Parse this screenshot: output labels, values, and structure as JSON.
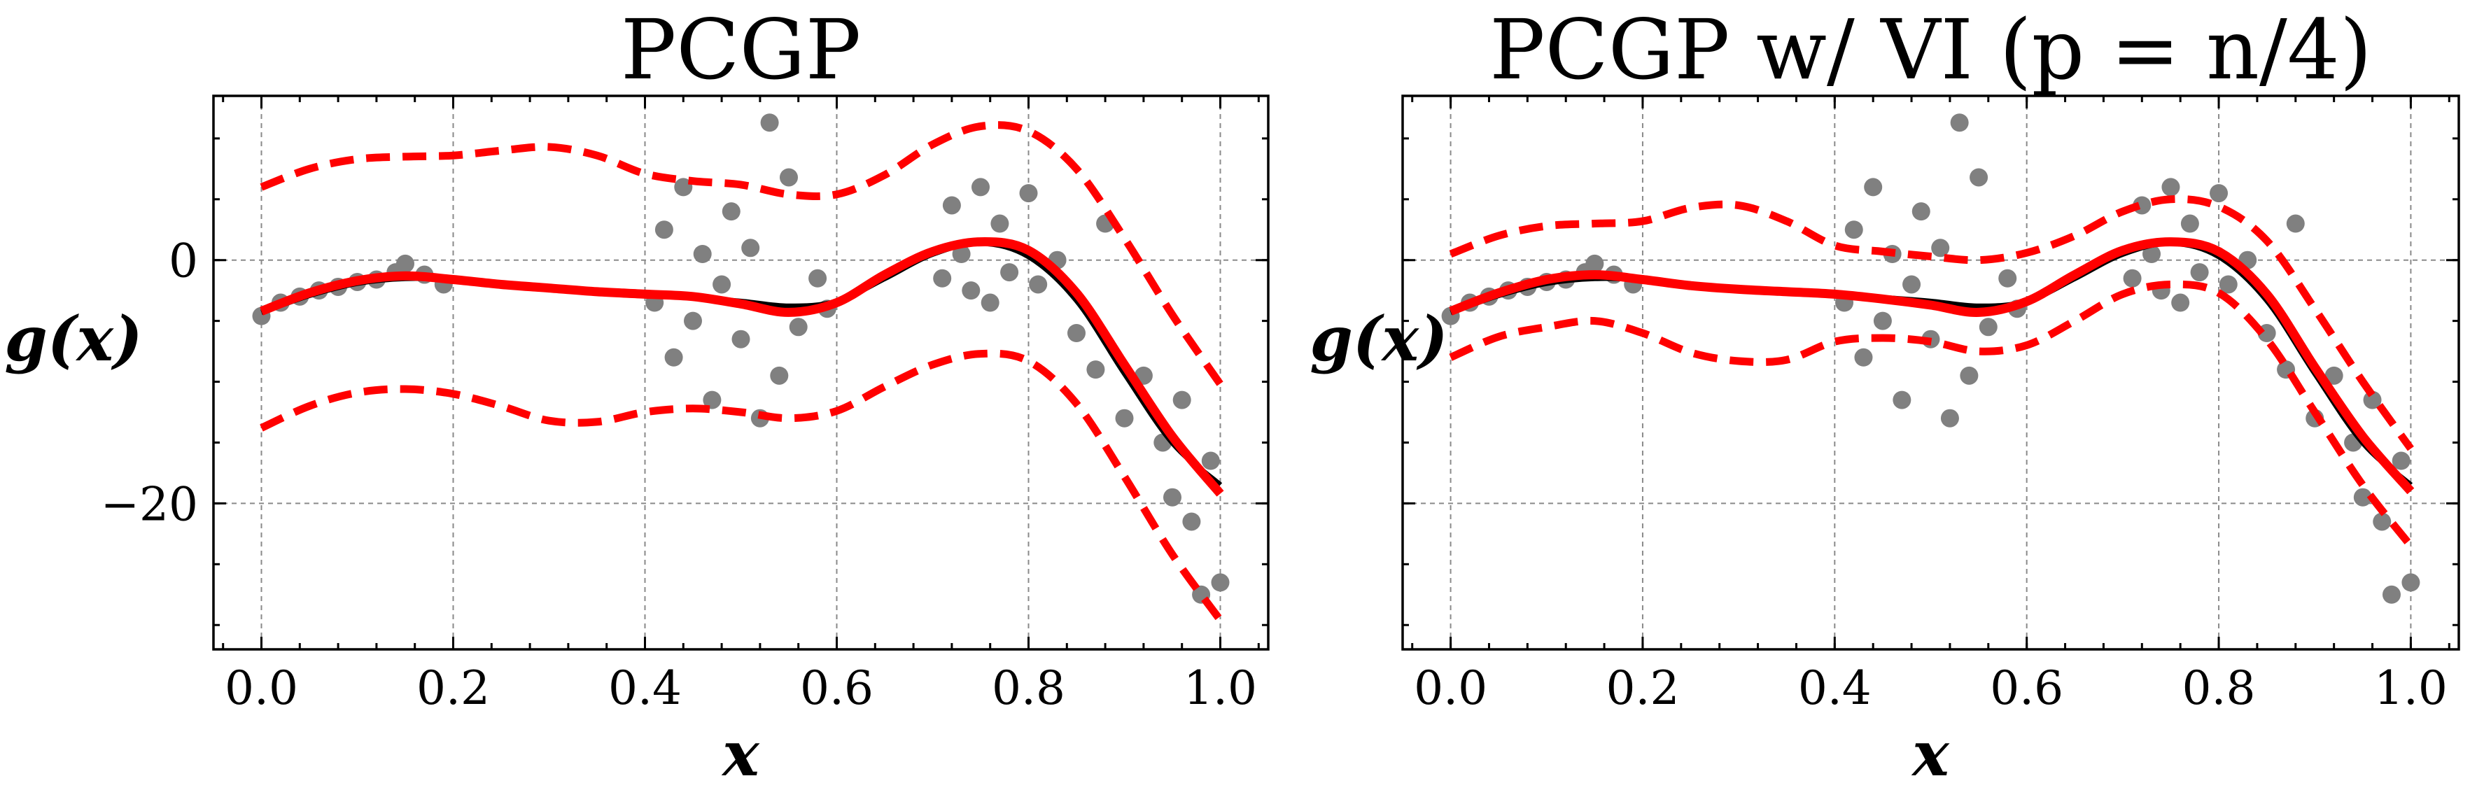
{
  "colors": {
    "points": "#808080",
    "true_function": "#000000",
    "mean": "#ff0000",
    "band": "#ff0000"
  },
  "chart_data": [
    {
      "type": "scatter",
      "title": "PCGP",
      "xlabel": "x",
      "ylabel": "g(x)",
      "xlim": [
        -0.05,
        1.05
      ],
      "ylim": [
        -32,
        13.5
      ],
      "xticks": [
        0.0,
        0.2,
        0.4,
        0.6,
        0.8,
        1.0
      ],
      "xtick_labels": [
        "0.0",
        "0.2",
        "0.4",
        "0.6",
        "0.8",
        "1.0"
      ],
      "yticks": [
        0,
        -20
      ],
      "ytick_labels": [
        "0",
        "−20"
      ],
      "grid": true,
      "x": [
        0.0,
        0.05,
        0.1,
        0.15,
        0.2,
        0.25,
        0.3,
        0.35,
        0.4,
        0.45,
        0.5,
        0.55,
        0.6,
        0.65,
        0.7,
        0.75,
        0.8,
        0.85,
        0.9,
        0.95,
        1.0
      ],
      "series": [
        {
          "role": "true-function",
          "y": [
            -4.3,
            -2.9,
            -1.9,
            -1.5,
            -1.6,
            -2.0,
            -2.4,
            -2.7,
            -2.9,
            -3.1,
            -3.4,
            -3.8,
            -3.4,
            -1.5,
            0.5,
            1.4,
            0.3,
            -3.3,
            -9.3,
            -15.0,
            -18.5
          ]
        },
        {
          "role": "mean",
          "y": [
            -4.2,
            -2.7,
            -1.7,
            -1.3,
            -1.6,
            -2.0,
            -2.3,
            -2.6,
            -2.8,
            -3.0,
            -3.6,
            -4.3,
            -3.5,
            -1.2,
            0.7,
            1.5,
            0.8,
            -2.7,
            -8.6,
            -14.5,
            -19.2
          ]
        },
        {
          "role": "upper-band",
          "y": [
            6.0,
            7.5,
            8.3,
            8.5,
            8.6,
            9.0,
            9.3,
            8.6,
            7.1,
            6.5,
            6.2,
            5.4,
            5.4,
            7.0,
            9.5,
            11.0,
            10.6,
            7.5,
            1.8,
            -4.5,
            -10.2
          ]
        },
        {
          "role": "lower-band",
          "y": [
            -13.8,
            -12.0,
            -10.9,
            -10.6,
            -11.0,
            -12.0,
            -13.2,
            -13.3,
            -12.5,
            -12.2,
            -12.5,
            -13.0,
            -12.4,
            -10.4,
            -8.6,
            -7.7,
            -8.3,
            -11.8,
            -17.8,
            -24.2,
            -29.6
          ]
        }
      ],
      "scatter_points": [
        {
          "x": 0.0,
          "y": -4.6
        },
        {
          "x": 0.02,
          "y": -3.5
        },
        {
          "x": 0.04,
          "y": -3.0
        },
        {
          "x": 0.06,
          "y": -2.5
        },
        {
          "x": 0.08,
          "y": -2.2
        },
        {
          "x": 0.1,
          "y": -1.8
        },
        {
          "x": 0.12,
          "y": -1.6
        },
        {
          "x": 0.14,
          "y": -1.0
        },
        {
          "x": 0.15,
          "y": -0.3
        },
        {
          "x": 0.17,
          "y": -1.2
        },
        {
          "x": 0.19,
          "y": -2.0
        },
        {
          "x": 0.41,
          "y": -3.5
        },
        {
          "x": 0.42,
          "y": 2.5
        },
        {
          "x": 0.43,
          "y": -8.0
        },
        {
          "x": 0.44,
          "y": 6.0
        },
        {
          "x": 0.45,
          "y": -5.0
        },
        {
          "x": 0.46,
          "y": 0.5
        },
        {
          "x": 0.47,
          "y": -11.5
        },
        {
          "x": 0.48,
          "y": -2.0
        },
        {
          "x": 0.49,
          "y": 4.0
        },
        {
          "x": 0.5,
          "y": -6.5
        },
        {
          "x": 0.51,
          "y": 1.0
        },
        {
          "x": 0.52,
          "y": -13.0
        },
        {
          "x": 0.53,
          "y": 11.3
        },
        {
          "x": 0.54,
          "y": -9.5
        },
        {
          "x": 0.55,
          "y": 6.8
        },
        {
          "x": 0.56,
          "y": -5.5
        },
        {
          "x": 0.58,
          "y": -1.5
        },
        {
          "x": 0.59,
          "y": -4.0
        },
        {
          "x": 0.71,
          "y": -1.5
        },
        {
          "x": 0.72,
          "y": 4.5
        },
        {
          "x": 0.73,
          "y": 0.5
        },
        {
          "x": 0.74,
          "y": -2.5
        },
        {
          "x": 0.75,
          "y": 6.0
        },
        {
          "x": 0.76,
          "y": -3.5
        },
        {
          "x": 0.77,
          "y": 3.0
        },
        {
          "x": 0.78,
          "y": -1.0
        },
        {
          "x": 0.8,
          "y": 5.5
        },
        {
          "x": 0.81,
          "y": -2.0
        },
        {
          "x": 0.83,
          "y": 0.0
        },
        {
          "x": 0.85,
          "y": -6.0
        },
        {
          "x": 0.87,
          "y": -9.0
        },
        {
          "x": 0.88,
          "y": 3.0
        },
        {
          "x": 0.9,
          "y": -13.0
        },
        {
          "x": 0.92,
          "y": -9.5
        },
        {
          "x": 0.94,
          "y": -15.0
        },
        {
          "x": 0.95,
          "y": -19.5
        },
        {
          "x": 0.96,
          "y": -11.5
        },
        {
          "x": 0.97,
          "y": -21.5
        },
        {
          "x": 0.98,
          "y": -27.5
        },
        {
          "x": 0.99,
          "y": -16.5
        },
        {
          "x": 1.0,
          "y": -26.5
        }
      ]
    },
    {
      "type": "scatter",
      "title": "PCGP w/ VI (p = n/4)",
      "xlabel": "x",
      "ylabel": "g(x)",
      "xlim": [
        -0.05,
        1.05
      ],
      "ylim": [
        -32,
        13.5
      ],
      "xticks": [
        0.0,
        0.2,
        0.4,
        0.6,
        0.8,
        1.0
      ],
      "xtick_labels": [
        "0.0",
        "0.2",
        "0.4",
        "0.6",
        "0.8",
        "1.0"
      ],
      "yticks": [
        0,
        -20
      ],
      "ytick_labels": [
        "",
        ""
      ],
      "grid": true,
      "x": [
        0.0,
        0.05,
        0.1,
        0.15,
        0.2,
        0.25,
        0.3,
        0.35,
        0.4,
        0.45,
        0.5,
        0.55,
        0.6,
        0.65,
        0.7,
        0.75,
        0.8,
        0.85,
        0.9,
        0.95,
        1.0
      ],
      "series": [
        {
          "role": "true-function",
          "y": [
            -4.3,
            -2.9,
            -1.9,
            -1.5,
            -1.6,
            -2.0,
            -2.4,
            -2.7,
            -2.9,
            -3.1,
            -3.4,
            -3.8,
            -3.4,
            -1.5,
            0.5,
            1.4,
            0.3,
            -3.3,
            -9.3,
            -15.0,
            -18.5
          ]
        },
        {
          "role": "mean",
          "y": [
            -4.2,
            -2.7,
            -1.6,
            -1.2,
            -1.6,
            -2.1,
            -2.4,
            -2.6,
            -2.8,
            -3.2,
            -3.7,
            -4.3,
            -3.4,
            -1.2,
            0.8,
            1.5,
            0.7,
            -2.8,
            -8.8,
            -14.5,
            -19.0
          ]
        },
        {
          "role": "upper-band",
          "y": [
            0.5,
            2.0,
            2.8,
            3.0,
            3.2,
            4.3,
            4.5,
            3.2,
            1.2,
            0.7,
            0.3,
            0.0,
            0.6,
            2.0,
            4.0,
            5.0,
            4.4,
            1.6,
            -4.0,
            -10.0,
            -15.5
          ]
        },
        {
          "role": "lower-band",
          "y": [
            -8.0,
            -6.3,
            -5.5,
            -5.0,
            -6.0,
            -7.6,
            -8.3,
            -8.2,
            -6.7,
            -6.4,
            -6.7,
            -7.5,
            -7.0,
            -5.0,
            -2.8,
            -2.0,
            -2.7,
            -6.5,
            -12.5,
            -18.5,
            -23.5
          ]
        }
      ],
      "scatter_points": [
        {
          "x": 0.0,
          "y": -4.6
        },
        {
          "x": 0.02,
          "y": -3.5
        },
        {
          "x": 0.04,
          "y": -3.0
        },
        {
          "x": 0.06,
          "y": -2.5
        },
        {
          "x": 0.08,
          "y": -2.2
        },
        {
          "x": 0.1,
          "y": -1.8
        },
        {
          "x": 0.12,
          "y": -1.6
        },
        {
          "x": 0.14,
          "y": -1.0
        },
        {
          "x": 0.15,
          "y": -0.3
        },
        {
          "x": 0.17,
          "y": -1.2
        },
        {
          "x": 0.19,
          "y": -2.0
        },
        {
          "x": 0.41,
          "y": -3.5
        },
        {
          "x": 0.42,
          "y": 2.5
        },
        {
          "x": 0.43,
          "y": -8.0
        },
        {
          "x": 0.44,
          "y": 6.0
        },
        {
          "x": 0.45,
          "y": -5.0
        },
        {
          "x": 0.46,
          "y": 0.5
        },
        {
          "x": 0.47,
          "y": -11.5
        },
        {
          "x": 0.48,
          "y": -2.0
        },
        {
          "x": 0.49,
          "y": 4.0
        },
        {
          "x": 0.5,
          "y": -6.5
        },
        {
          "x": 0.51,
          "y": 1.0
        },
        {
          "x": 0.52,
          "y": -13.0
        },
        {
          "x": 0.53,
          "y": 11.3
        },
        {
          "x": 0.54,
          "y": -9.5
        },
        {
          "x": 0.55,
          "y": 6.8
        },
        {
          "x": 0.56,
          "y": -5.5
        },
        {
          "x": 0.58,
          "y": -1.5
        },
        {
          "x": 0.59,
          "y": -4.0
        },
        {
          "x": 0.71,
          "y": -1.5
        },
        {
          "x": 0.72,
          "y": 4.5
        },
        {
          "x": 0.73,
          "y": 0.5
        },
        {
          "x": 0.74,
          "y": -2.5
        },
        {
          "x": 0.75,
          "y": 6.0
        },
        {
          "x": 0.76,
          "y": -3.5
        },
        {
          "x": 0.77,
          "y": 3.0
        },
        {
          "x": 0.78,
          "y": -1.0
        },
        {
          "x": 0.8,
          "y": 5.5
        },
        {
          "x": 0.81,
          "y": -2.0
        },
        {
          "x": 0.83,
          "y": 0.0
        },
        {
          "x": 0.85,
          "y": -6.0
        },
        {
          "x": 0.87,
          "y": -9.0
        },
        {
          "x": 0.88,
          "y": 3.0
        },
        {
          "x": 0.9,
          "y": -13.0
        },
        {
          "x": 0.92,
          "y": -9.5
        },
        {
          "x": 0.94,
          "y": -15.0
        },
        {
          "x": 0.95,
          "y": -19.5
        },
        {
          "x": 0.96,
          "y": -11.5
        },
        {
          "x": 0.97,
          "y": -21.5
        },
        {
          "x": 0.98,
          "y": -27.5
        },
        {
          "x": 0.99,
          "y": -16.5
        },
        {
          "x": 1.0,
          "y": -26.5
        }
      ]
    }
  ]
}
